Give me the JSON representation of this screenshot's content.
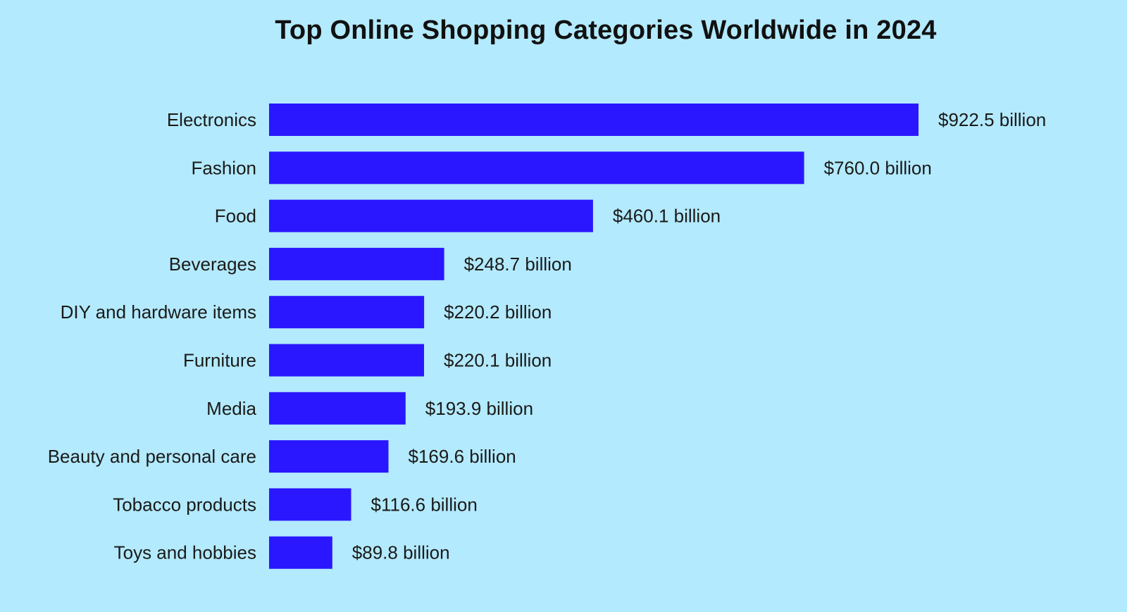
{
  "chart_data": {
    "type": "bar",
    "orientation": "horizontal",
    "title": "Top Online Shopping Categories Worldwide in 2024",
    "xlabel": "",
    "ylabel": "",
    "unit": "billion USD",
    "categories": [
      "Electronics",
      "Fashion",
      "Food",
      "Beverages",
      "DIY and hardware items",
      "Furniture",
      "Media",
      "Beauty and personal care",
      "Tobacco products",
      "Toys and hobbies"
    ],
    "values": [
      922.5,
      760.0,
      460.1,
      248.7,
      220.2,
      220.1,
      193.9,
      169.6,
      116.6,
      89.8
    ],
    "value_labels": [
      "$922.5 billion",
      "$760.0 billion",
      "$460.1 billion",
      "$248.7 billion",
      "$220.2 billion",
      "$220.1 billion",
      "$193.9 billion",
      "$169.6 billion",
      "$116.6 billion",
      "$89.8 billion"
    ],
    "xlim": [
      0,
      922.5
    ],
    "grid": false,
    "legend": "none",
    "colors": {
      "bar": "#2a17ff",
      "background": "#b3eafd",
      "text": "#111111"
    }
  }
}
